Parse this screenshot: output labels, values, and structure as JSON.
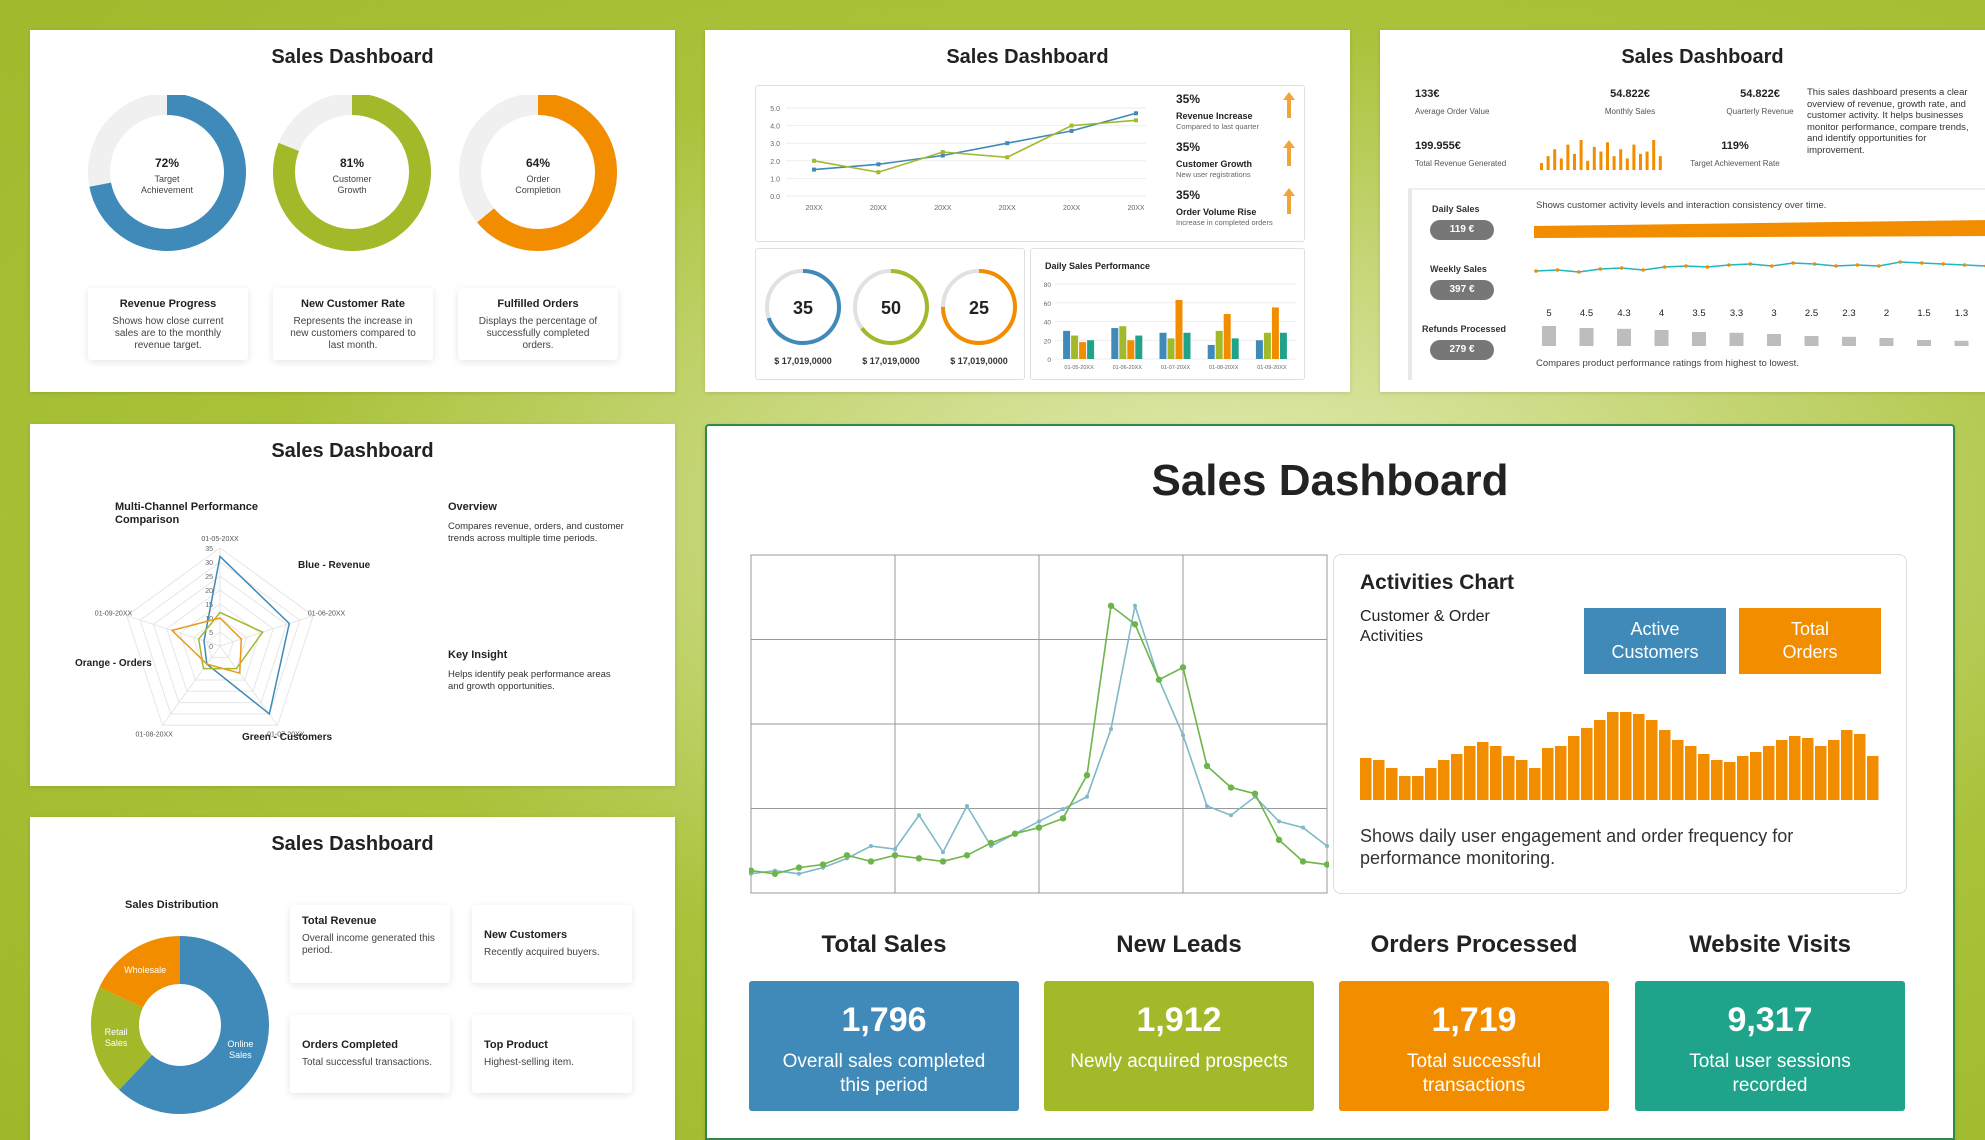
{
  "colors": {
    "blue": "#3f8ab8",
    "green": "#a3b92a",
    "orange": "#f28d00",
    "teal": "#1fa38a",
    "gray": "#bdbdbd"
  },
  "p1": {
    "title": "Sales Dashboard",
    "donuts": [
      {
        "pct": "72%",
        "value": 72,
        "label1": "Target",
        "label2": "Achievement",
        "color": "#3f8ab8"
      },
      {
        "pct": "81%",
        "value": 81,
        "label1": "Customer",
        "label2": "Growth",
        "color": "#a3b92a"
      },
      {
        "pct": "64%",
        "value": 64,
        "label1": "Order",
        "label2": "Completion",
        "color": "#f28d00"
      }
    ],
    "cards": [
      {
        "title": "Revenue Progress",
        "desc": "Shows how close current sales are to the monthly revenue target."
      },
      {
        "title": "New Customer Rate",
        "desc": "Represents the increase in new customers compared to last month."
      },
      {
        "title": "Fulfilled Orders",
        "desc": "Displays the percentage of successfully completed orders."
      }
    ]
  },
  "p2": {
    "title": "Sales Dashboard",
    "line_chart": {
      "type": "line",
      "x": [
        "20XX",
        "20XX",
        "20XX",
        "20XX",
        "20XX",
        "20XX"
      ],
      "ylim": [
        0,
        5
      ],
      "yticks": [
        "5.0",
        "4.0",
        "3.0",
        "2.0",
        "1.0",
        "0.0"
      ],
      "series": [
        {
          "color": "#3f8ab8",
          "values": [
            1.5,
            1.8,
            2.3,
            3.0,
            3.7,
            4.7
          ]
        },
        {
          "color": "#a3b92a",
          "values": [
            2.0,
            1.35,
            2.5,
            2.2,
            4.0,
            4.3
          ]
        }
      ]
    },
    "stats": [
      {
        "pct": "35%",
        "title": "Revenue Increase",
        "sub": "Compared to last quarter"
      },
      {
        "pct": "35%",
        "title": "Customer Growth",
        "sub": "New user registrations"
      },
      {
        "pct": "35%",
        "title": "Order Volume Rise",
        "sub": "Increase in completed orders"
      }
    ],
    "rings": [
      {
        "value": "35",
        "pct": 70,
        "amount": "$ 17,019,0000",
        "color": "#3f8ab8"
      },
      {
        "value": "50",
        "pct": 65,
        "amount": "$ 17,019,0000",
        "color": "#a3b92a"
      },
      {
        "value": "25",
        "pct": 75,
        "amount": "$ 17,019,0000",
        "color": "#f28d00"
      }
    ],
    "bar_chart": {
      "type": "bar",
      "title": "Daily Sales Performance",
      "categories": [
        "01-05-20XX",
        "01-06-20XX",
        "01-07-20XX",
        "01-08-20XX",
        "01-09-20XX"
      ],
      "yticks": [
        "80",
        "60",
        "40",
        "20",
        "0"
      ],
      "ylim": [
        0,
        80
      ],
      "series": [
        {
          "color": "#3f8ab8",
          "values": [
            30,
            33,
            28,
            15,
            20
          ]
        },
        {
          "color": "#a3b92a",
          "values": [
            25,
            35,
            22,
            30,
            28
          ]
        },
        {
          "color": "#f28d00",
          "values": [
            18,
            20,
            63,
            48,
            55
          ]
        },
        {
          "color": "#1fa38a",
          "values": [
            20,
            25,
            28,
            22,
            28
          ]
        }
      ]
    }
  },
  "p3": {
    "title": "Sales Dashboard",
    "metrics": [
      {
        "value": "133€",
        "label": "Average Order Value"
      },
      {
        "value": "54.822€",
        "label": "Monthly Sales"
      },
      {
        "value": "54.822€",
        "label": "Quarterly Revenue"
      },
      {
        "value": "199.955€",
        "label": "Total Revenue Generated"
      },
      {
        "value": "119%",
        "label": "Target Achievement Rate"
      }
    ],
    "description": "This sales dashboard presents a clear overview of revenue, growth rate, and customer activity. It helps businesses monitor performance, compare trends, and identify opportunities for improvement.",
    "mini_bars": [
      6,
      12,
      18,
      10,
      22,
      14,
      26,
      8,
      20,
      16,
      24,
      12,
      18,
      10,
      22,
      14,
      16,
      26,
      12
    ],
    "rows": [
      {
        "label": "Daily Sales",
        "pill": "119 €"
      },
      {
        "label": "Weekly Sales",
        "pill": "397 €"
      },
      {
        "label": "Refunds Processed",
        "pill": "279 €"
      }
    ],
    "row_note_top": "Shows customer activity levels and interaction consistency over time.",
    "weekly_line": [
      15,
      16,
      14,
      17,
      18,
      16,
      19,
      20,
      19,
      21,
      22,
      20,
      23,
      22,
      20,
      21,
      20,
      24,
      23,
      22,
      21,
      20
    ],
    "ratings": [
      "5",
      "4.5",
      "4.3",
      "4",
      "3.5",
      "3.3",
      "3",
      "2.5",
      "2.3",
      "2",
      "1.5",
      "1.3"
    ],
    "rating_values": [
      5,
      4.5,
      4.3,
      4,
      3.5,
      3.3,
      3,
      2.5,
      2.3,
      2,
      1.5,
      1.3
    ],
    "row_note_bottom": "Compares product performance ratings from highest to lowest."
  },
  "p4": {
    "title": "Sales Dashboard",
    "radar_title": "Multi-Channel Performance Comparison",
    "radar": {
      "type": "radar",
      "axes": [
        "01-05-20XX",
        "01-06-20XX",
        "01-07-20XX",
        "01-08-20XX",
        "01-09-20XX"
      ],
      "ticks": [
        "35",
        "30",
        "25",
        "20",
        "15",
        "10",
        "5",
        "0"
      ],
      "series": [
        {
          "name": "Blue - Revenue",
          "color": "#3f8ab8",
          "values": [
            32,
            26,
            30,
            8,
            6
          ]
        },
        {
          "name": "Green - Customers",
          "color": "#a3b92a",
          "values": [
            12,
            16,
            10,
            10,
            8
          ]
        },
        {
          "name": "Orange - Orders",
          "color": "#e89a1c",
          "values": [
            10,
            8,
            12,
            8,
            18
          ]
        }
      ]
    },
    "legend": {
      "blue": "Blue - Revenue",
      "orange": "Orange - Orders",
      "green": "Green - Customers"
    },
    "overview_title": "Overview",
    "overview_text": "Compares revenue, orders, and customer trends across multiple time periods.",
    "insight_title": "Key Insight",
    "insight_text": "Helps identify peak performance areas and growth opportunities."
  },
  "p5": {
    "title": "Sales Dashboard",
    "pie_title": "Sales Distribution",
    "pie": {
      "type": "pie",
      "slices": [
        {
          "label": "Online Sales",
          "l1": "Online",
          "l2": "Sales",
          "value": 62,
          "color": "#3f8ab8"
        },
        {
          "label": "Retail Sales",
          "l1": "Retail",
          "l2": "Sales",
          "value": 20,
          "color": "#a3b92a"
        },
        {
          "label": "Wholesale",
          "l1": "Wholesale",
          "l2": "",
          "value": 18,
          "color": "#f28d00"
        }
      ]
    },
    "cards": [
      {
        "title": "Total Revenue",
        "desc": "Overall income generated this period."
      },
      {
        "title": "New Customers",
        "desc": "Recently acquired buyers."
      },
      {
        "title": "Orders Completed",
        "desc": "Total successful transactions."
      },
      {
        "title": "Top Product",
        "desc": "Highest-selling item."
      }
    ]
  },
  "main": {
    "title": "Sales Dashboard",
    "line_chart": {
      "type": "line",
      "grid": true,
      "ylim": [
        0,
        100
      ],
      "series": [
        {
          "color": "#7fb8c8",
          "values": [
            3,
            4,
            3,
            5,
            8,
            12,
            11,
            22,
            10,
            25,
            12,
            16,
            20,
            24,
            28,
            50,
            90,
            66,
            48,
            25,
            22,
            28,
            20,
            18,
            12
          ]
        },
        {
          "color": "#6db54a",
          "values": [
            4,
            3,
            5,
            6,
            9,
            7,
            9,
            8,
            7,
            9,
            13,
            16,
            18,
            21,
            35,
            90,
            84,
            66,
            70,
            38,
            31,
            29,
            14,
            7,
            6
          ]
        }
      ]
    },
    "activities": {
      "title": "Activities Chart",
      "subtitle": "Customer & Order Activities",
      "btn_active": "Active Customers",
      "btn_total": "Total Orders",
      "bars": [
        42,
        40,
        32,
        24,
        24,
        32,
        40,
        46,
        54,
        58,
        54,
        44,
        40,
        32,
        52,
        54,
        64,
        72,
        80,
        88,
        88,
        86,
        80,
        70,
        60,
        54,
        46,
        40,
        38,
        44,
        48,
        54,
        60,
        64,
        62,
        54,
        60,
        70,
        66,
        44
      ],
      "note": "Shows daily user engagement and order frequency for performance monitoring."
    },
    "kpis": [
      {
        "title": "Total Sales",
        "value": "1,796",
        "desc": "Overall sales completed this period",
        "color": "#3f8ab8"
      },
      {
        "title": "New Leads",
        "value": "1,912",
        "desc": "Newly acquired prospects",
        "color": "#a3b92a"
      },
      {
        "title": "Orders Processed",
        "value": "1,719",
        "desc": "Total successful transactions",
        "color": "#f28d00"
      },
      {
        "title": "Website Visits",
        "value": "9,317",
        "desc": "Total user sessions recorded",
        "color": "#1fa38a"
      }
    ]
  }
}
